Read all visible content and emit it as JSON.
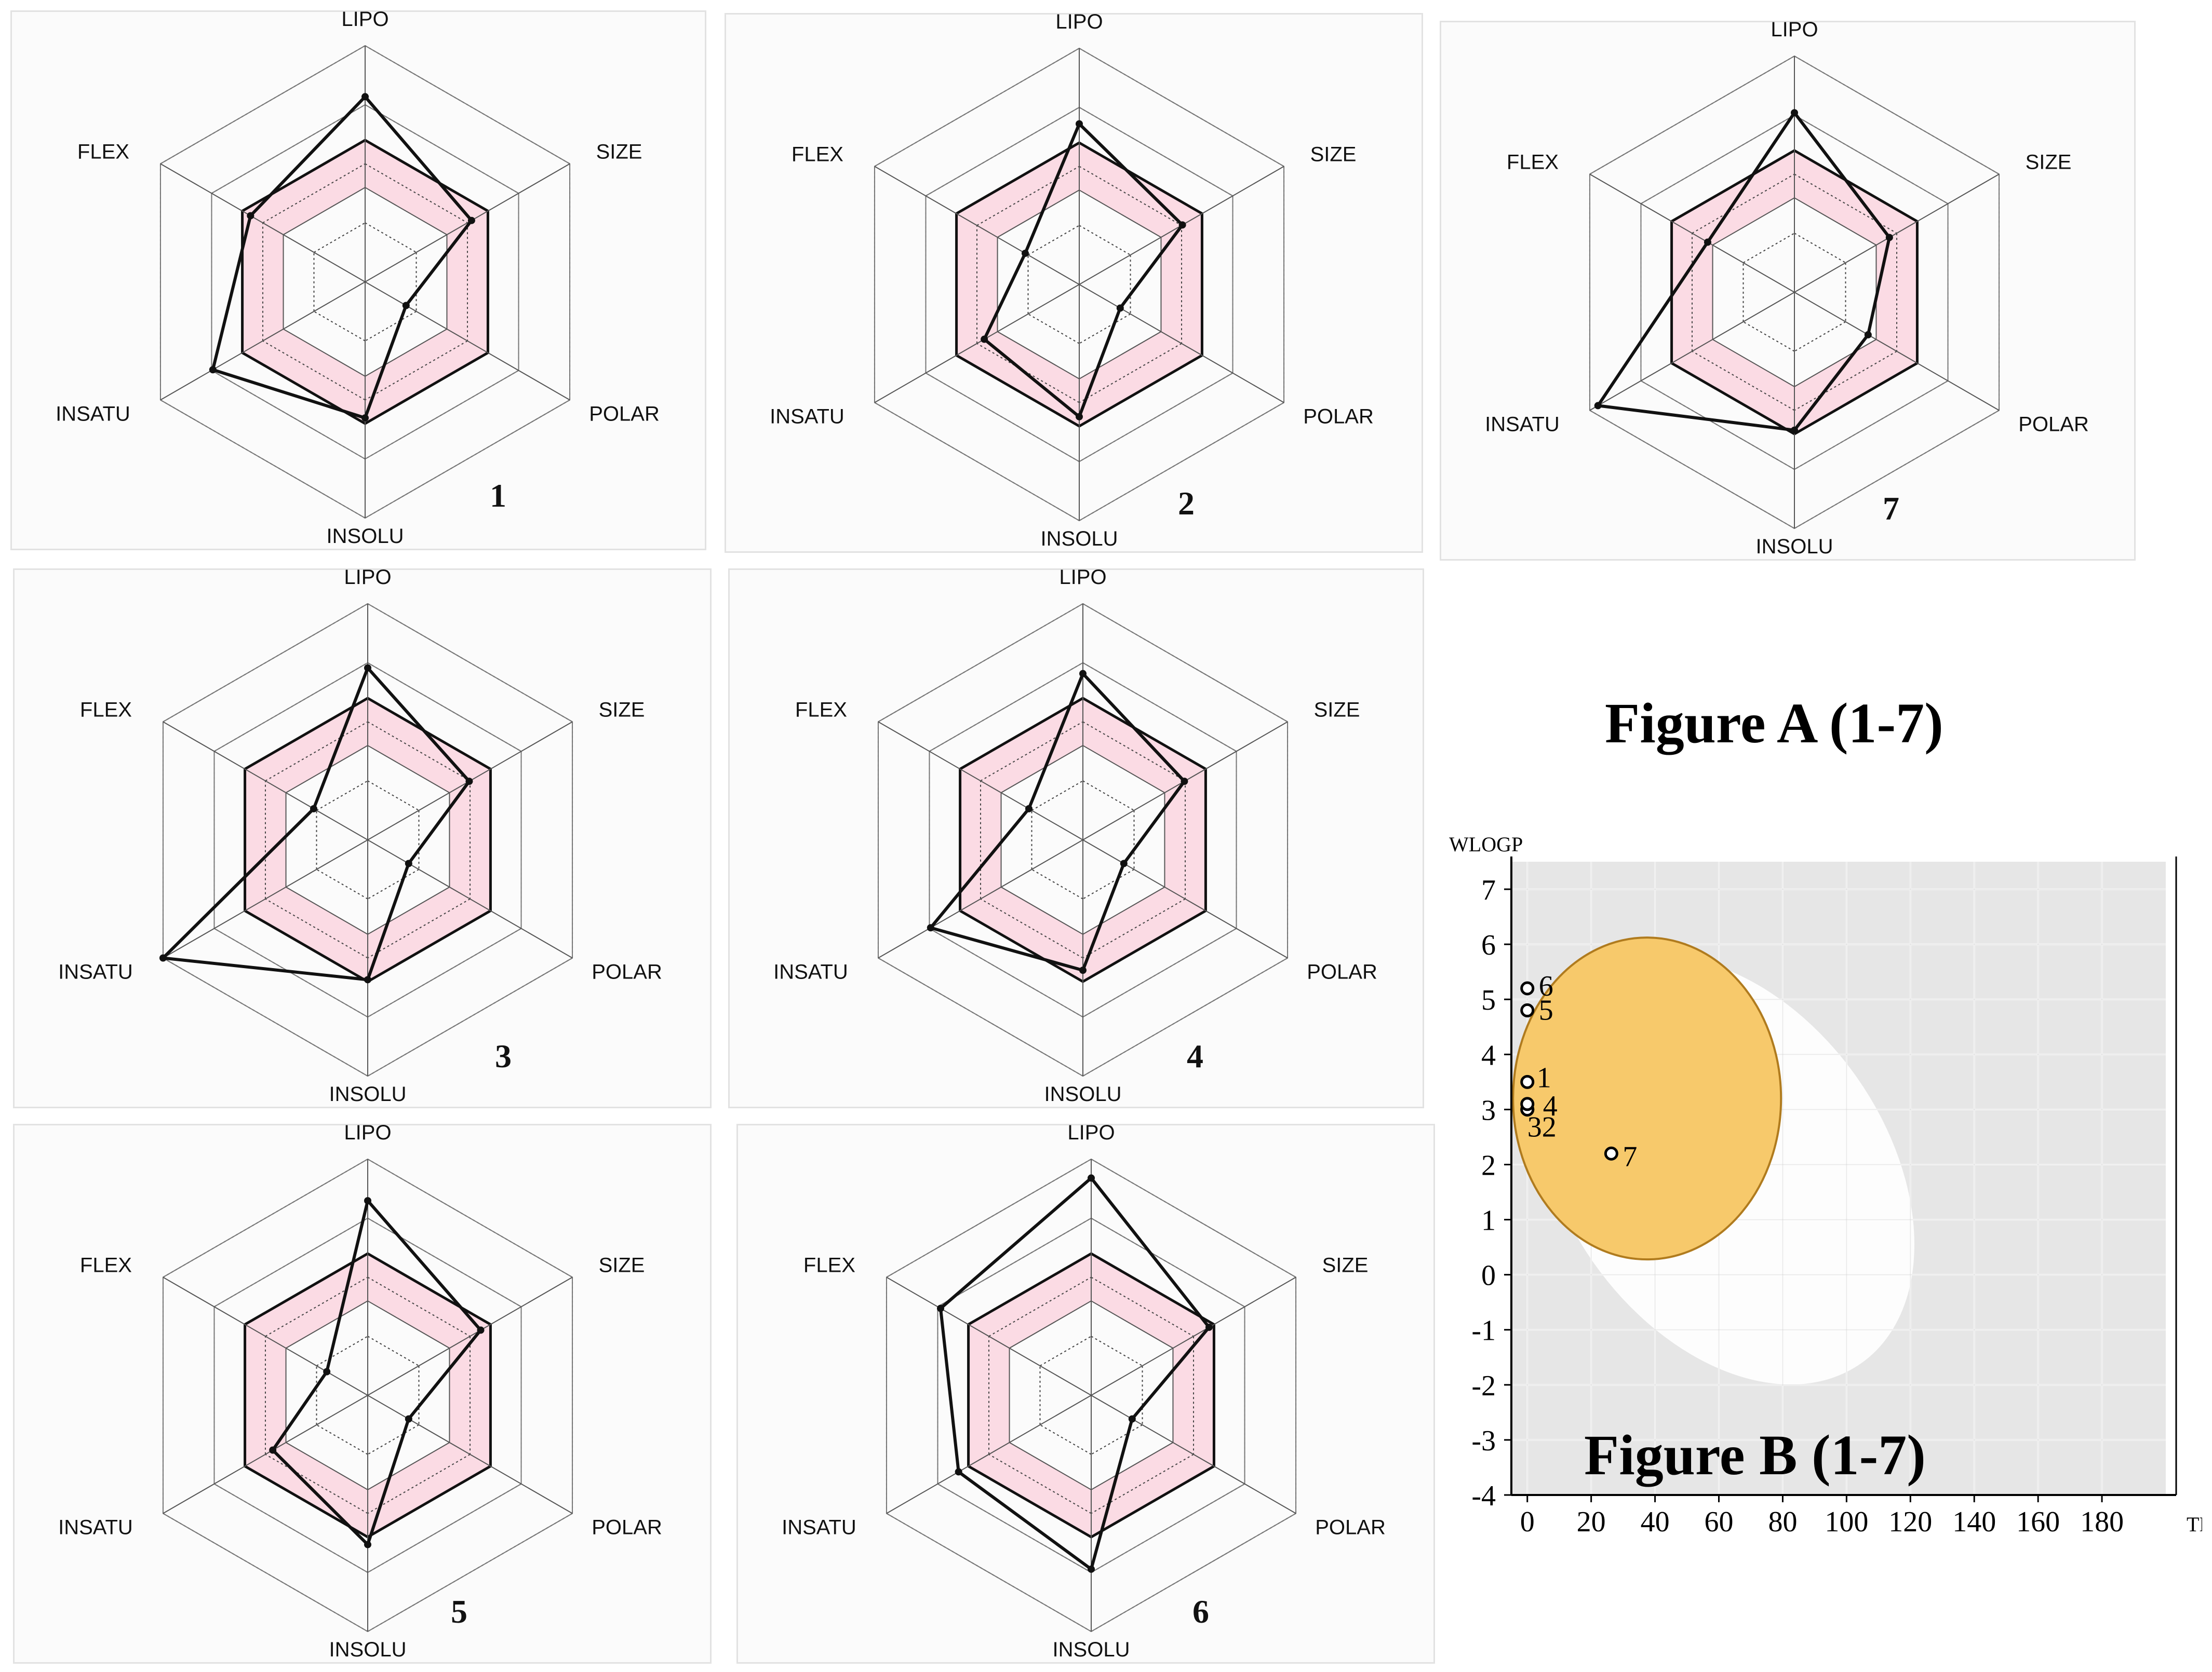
{
  "figure_a_title": "Figure A (1-7)",
  "figure_b_title": "Figure B (1-7)",
  "chart_data": [
    {
      "type": "radar",
      "id": "bioavailability-radar-1",
      "label": "1",
      "axes": [
        "LIPO",
        "SIZE",
        "POLAR",
        "INSOLU",
        "INSATU",
        "FLEX"
      ],
      "values": [
        0.73,
        0.4,
        0.0,
        0.47,
        0.68,
        0.45
      ],
      "optimal_range": [
        0.25,
        0.5
      ],
      "scale": [
        -0.25,
        1.0
      ]
    },
    {
      "type": "radar",
      "id": "bioavailability-radar-2",
      "label": "2",
      "axes": [
        "LIPO",
        "SIZE",
        "POLAR",
        "INSOLU",
        "INSATU",
        "FLEX"
      ],
      "values": [
        0.6,
        0.38,
        0.0,
        0.45,
        0.33,
        0.08
      ],
      "optimal_range": [
        0.25,
        0.5
      ],
      "scale": [
        -0.25,
        1.0
      ]
    },
    {
      "type": "radar",
      "id": "bioavailability-radar-3",
      "label": "3",
      "axes": [
        "LIPO",
        "SIZE",
        "POLAR",
        "INSOLU",
        "INSATU",
        "FLEX"
      ],
      "values": [
        0.66,
        0.37,
        0.0,
        0.49,
        1.0,
        0.08
      ],
      "optimal_range": [
        0.25,
        0.5
      ],
      "scale": [
        -0.25,
        1.0
      ]
    },
    {
      "type": "radar",
      "id": "bioavailability-radar-4",
      "label": "4",
      "axes": [
        "LIPO",
        "SIZE",
        "POLAR",
        "INSOLU",
        "INSATU",
        "FLEX"
      ],
      "values": [
        0.63,
        0.37,
        0.0,
        0.44,
        0.68,
        0.08
      ],
      "optimal_range": [
        0.25,
        0.5
      ],
      "scale": [
        -0.25,
        1.0
      ]
    },
    {
      "type": "radar",
      "id": "bioavailability-radar-5",
      "label": "5",
      "axes": [
        "LIPO",
        "SIZE",
        "POLAR",
        "INSOLU",
        "INSATU",
        "FLEX"
      ],
      "values": [
        0.78,
        0.44,
        0.0,
        0.54,
        0.33,
        0.0
      ],
      "optimal_range": [
        0.25,
        0.5
      ],
      "scale": [
        -0.25,
        1.0
      ]
    },
    {
      "type": "radar",
      "id": "bioavailability-radar-6",
      "label": "6",
      "axes": [
        "LIPO",
        "SIZE",
        "POLAR",
        "INSOLU",
        "INSATU",
        "FLEX"
      ],
      "values": [
        0.9,
        0.47,
        0.0,
        0.67,
        0.56,
        0.67
      ],
      "optimal_range": [
        0.25,
        0.5
      ],
      "scale": [
        -0.25,
        1.0
      ]
    },
    {
      "type": "radar",
      "id": "bioavailability-radar-7",
      "label": "7",
      "axes": [
        "LIPO",
        "SIZE",
        "POLAR",
        "INSOLU",
        "INSATU",
        "FLEX"
      ],
      "values": [
        0.7,
        0.33,
        0.2,
        0.48,
        0.95,
        0.28
      ],
      "optimal_range": [
        0.25,
        0.5
      ],
      "scale": [
        -0.25,
        1.0
      ]
    },
    {
      "type": "scatter",
      "id": "boiled-egg",
      "xlabel": "TPSA",
      "ylabel": "WLOGP",
      "xlim": [
        -5,
        200
      ],
      "ylim": [
        -4,
        7.5
      ],
      "xticks": [
        0,
        20,
        40,
        60,
        80,
        100,
        120,
        140,
        160,
        180
      ],
      "yticks": [
        7,
        6,
        5,
        4,
        3,
        2,
        1,
        0,
        -1,
        -2,
        -3,
        -4
      ],
      "grid": true,
      "points": [
        {
          "label": "1",
          "x": 0,
          "y": 3.5
        },
        {
          "label": "2",
          "x": 0,
          "y": 3.0
        },
        {
          "label": "3",
          "x": 0,
          "y": 3.0
        },
        {
          "label": "4",
          "x": 0,
          "y": 3.1
        },
        {
          "label": "5",
          "x": 0,
          "y": 4.8
        },
        {
          "label": "6",
          "x": 0,
          "y": 5.2
        },
        {
          "label": "7",
          "x": 26.3,
          "y": 2.2
        }
      ],
      "regions": [
        {
          "name": "white",
          "color": "#ffffff"
        },
        {
          "name": "yolk",
          "color": "#f7c96b"
        }
      ],
      "background_color": "#e6e6e6"
    }
  ]
}
